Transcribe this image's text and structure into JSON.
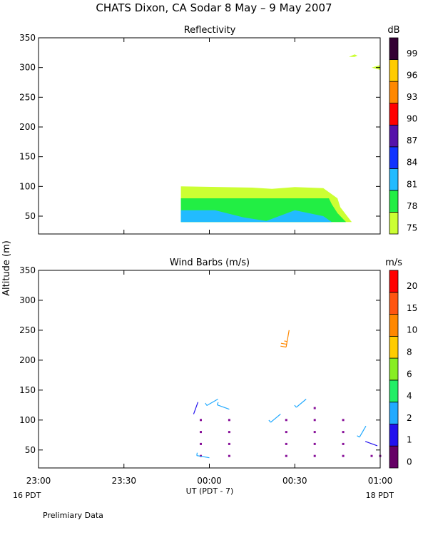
{
  "title": "CHATS Dixon, CA  Sodar   8 May –  9 May 2007",
  "footer_note": "Prelimiary Data",
  "x_axis": {
    "label": "UT  (PDT - 7)",
    "range": [
      "23:00",
      "01:00"
    ],
    "ticks": [
      "23:00",
      "23:30",
      "00:00",
      "00:30",
      "01:00"
    ],
    "day_left": "16 PDT",
    "day_right": "18 PDT"
  },
  "y_axis_label": "Altitude  (m)",
  "chart_data": [
    {
      "type": "heatmap",
      "title": "Reflectivity",
      "ylim": [
        20,
        350
      ],
      "yticks": [
        50,
        100,
        150,
        200,
        250,
        300,
        350
      ],
      "grid": false,
      "colorbar": {
        "unit": "dB",
        "levels": [
          75,
          78,
          81,
          84,
          87,
          90,
          93,
          96,
          99
        ],
        "colors": [
          "#ccff33",
          "#22ee44",
          "#22bbff",
          "#1133ff",
          "#5511aa",
          "#ff0000",
          "#ff8800",
          "#ffcc00",
          "#330033"
        ]
      },
      "series": [
        {
          "level": 75,
          "points": [
            [
              "23:50",
              40
            ],
            [
              "23:50",
              100
            ],
            [
              "00:15",
              98
            ],
            [
              "00:22",
              96
            ],
            [
              "00:30",
              99
            ],
            [
              "00:40",
              97
            ],
            [
              "00:45",
              80
            ],
            [
              "00:46",
              65
            ],
            [
              "00:50",
              40
            ]
          ]
        },
        {
          "level": 78,
          "points": [
            [
              "23:50",
              40
            ],
            [
              "23:50",
              80
            ],
            [
              "00:42",
              80
            ],
            [
              "00:43",
              70
            ],
            [
              "00:45",
              55
            ],
            [
              "00:48",
              40
            ]
          ]
        },
        {
          "level": 81,
          "points": [
            [
              "23:50",
              40
            ],
            [
              "23:50",
              60
            ],
            [
              "00:02",
              60
            ],
            [
              "00:12",
              48
            ],
            [
              "00:20",
              42
            ],
            [
              "00:30",
              60
            ],
            [
              "00:40",
              50
            ],
            [
              "00:43",
              40
            ]
          ]
        },
        {
          "level": 75,
          "points": [
            [
              "00:49",
              318
            ],
            [
              "00:51",
              322
            ],
            [
              "00:52",
              320
            ],
            [
              "00:51",
              318
            ]
          ]
        },
        {
          "level": 75,
          "points": [
            [
              "00:57",
              300
            ],
            [
              "01:00",
              296
            ],
            [
              "01:00",
              304
            ]
          ]
        }
      ]
    },
    {
      "type": "scatter",
      "title": "Wind Barbs (m/s)",
      "ylim": [
        20,
        350
      ],
      "yticks": [
        50,
        100,
        150,
        200,
        250,
        300,
        350
      ],
      "grid": false,
      "colorbar": {
        "unit": "m/s",
        "levels": [
          0,
          1,
          2,
          4,
          6,
          8,
          10,
          15,
          20
        ],
        "colors": [
          "#660066",
          "#2211ee",
          "#22aaff",
          "#22ee66",
          "#88ee22",
          "#ffcc00",
          "#ff8800",
          "#ff5511",
          "#ff0000"
        ]
      },
      "barbs": [
        {
          "x": "23:56",
          "y": 130,
          "dir": 200,
          "speed": 1,
          "color": "#2211ee"
        },
        {
          "x": "00:03",
          "y": 135,
          "dir": 240,
          "speed": 3,
          "color": "#22aaff"
        },
        {
          "x": "00:07",
          "y": 118,
          "dir": 290,
          "speed": 3,
          "color": "#22aaff"
        },
        {
          "x": "00:28",
          "y": 250,
          "dir": 190,
          "speed": 12,
          "color": "#ff8800"
        },
        {
          "x": "00:25",
          "y": 110,
          "dir": 230,
          "speed": 3,
          "color": "#22aaff"
        },
        {
          "x": "00:34",
          "y": 135,
          "dir": 230,
          "speed": 3,
          "color": "#22aaff"
        },
        {
          "x": "00:55",
          "y": 90,
          "dir": 210,
          "speed": 3,
          "color": "#22aaff"
        },
        {
          "x": "00:59",
          "y": 57,
          "dir": 290,
          "speed": 1,
          "color": "#2211ee"
        },
        {
          "x": "00:00",
          "y": 37,
          "dir": 280,
          "speed": 3,
          "color": "#22aaff"
        }
      ],
      "calm_points": [
        [
          "23:57",
          100
        ],
        [
          "23:57",
          80
        ],
        [
          "23:57",
          60
        ],
        [
          "23:57",
          40
        ],
        [
          "00:07",
          100
        ],
        [
          "00:07",
          80
        ],
        [
          "00:07",
          60
        ],
        [
          "00:07",
          40
        ],
        [
          "00:27",
          100
        ],
        [
          "00:27",
          80
        ],
        [
          "00:27",
          60
        ],
        [
          "00:27",
          40
        ],
        [
          "00:37",
          120
        ],
        [
          "00:37",
          100
        ],
        [
          "00:37",
          80
        ],
        [
          "00:37",
          60
        ],
        [
          "00:37",
          40
        ],
        [
          "00:47",
          100
        ],
        [
          "00:47",
          80
        ],
        [
          "00:47",
          60
        ],
        [
          "00:47",
          40
        ],
        [
          "00:57",
          40
        ],
        [
          "01:00",
          40
        ]
      ]
    }
  ]
}
